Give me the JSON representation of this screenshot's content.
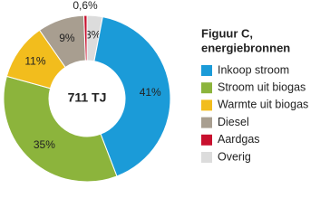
{
  "chart_data": {
    "type": "donut",
    "title": [
      "Figuur C,",
      "energiebronnen"
    ],
    "center_label": "711 TJ",
    "categories": [
      "Overig",
      "Inkoop stroom",
      "Stroom uit biogas",
      "Warmte uit biogas",
      "Diesel",
      "Aardgas"
    ],
    "values": [
      3,
      41,
      35,
      11,
      9,
      0.6
    ],
    "value_labels": [
      "3%",
      "41%",
      "35%",
      "11%",
      "9%",
      "0,6%"
    ],
    "colors": [
      "#dcdcdc",
      "#1b9bd8",
      "#8cb43c",
      "#f2bd1d",
      "#a89e90",
      "#c8102e"
    ],
    "legend_order": [
      1,
      2,
      3,
      4,
      5,
      0
    ]
  }
}
